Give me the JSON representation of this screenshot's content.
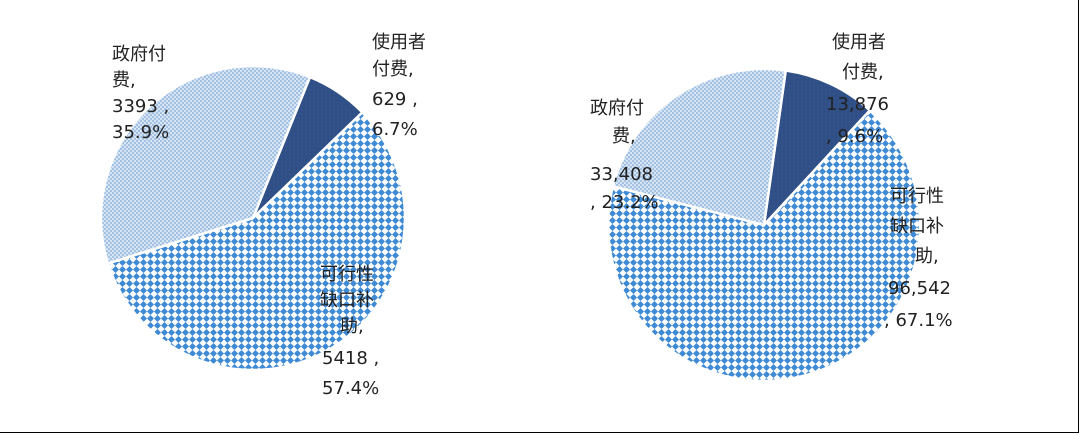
{
  "colors": {
    "government": "#9bbde0",
    "user": "#2f4f86",
    "gap": "#4a90d9",
    "border": "#000000"
  },
  "chart_data": [
    {
      "type": "pie",
      "title": "",
      "slices": [
        {
          "key": "user",
          "label_lines": [
            "使用者",
            "付费,",
            "629 ,",
            "6.7%"
          ],
          "value": 629,
          "percent": 6.7
        },
        {
          "key": "gap",
          "label_lines": [
            "可行性",
            "缺口补",
            "助,",
            "5418 ,",
            "57.4%"
          ],
          "value": 5418,
          "percent": 57.4
        },
        {
          "key": "government",
          "label_lines": [
            "政府付",
            "费,",
            "3393 ,",
            "35.9%"
          ],
          "value": 3393,
          "percent": 35.9
        }
      ]
    },
    {
      "type": "pie",
      "title": "",
      "slices": [
        {
          "key": "user",
          "label_lines": [
            "使用者",
            "付费,",
            "13,876",
            ", 9.6%"
          ],
          "value": 13876,
          "percent": 9.6
        },
        {
          "key": "gap",
          "label_lines": [
            "可行性",
            "缺口补",
            "助,",
            "96,542",
            ", 67.1%"
          ],
          "value": 96542,
          "percent": 67.1
        },
        {
          "key": "government",
          "label_lines": [
            "政府付",
            "费,",
            "33,408",
            ", 23.2%"
          ],
          "value": 33408,
          "percent": 23.2
        }
      ]
    }
  ]
}
